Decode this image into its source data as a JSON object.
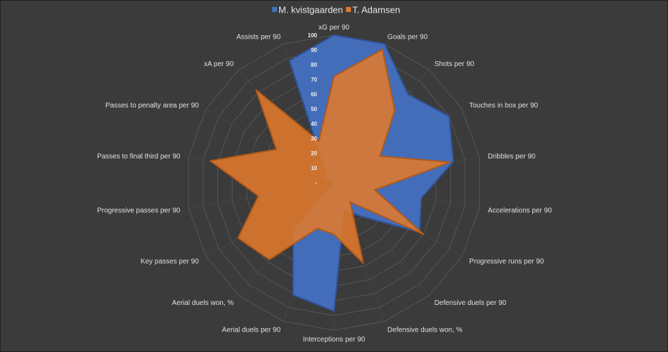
{
  "chart_data": {
    "type": "radar",
    "title": "",
    "axes": [
      "xG per 90",
      "Goals per 90",
      "Shots per 90",
      "Touches in box per 90",
      "Dribbles per 90",
      "Accelerations per 90",
      "Progressive runs per 90",
      "Defensive duels per 90",
      "Defensive duels won, %",
      "Interceptions per 90",
      "Aerial duels per 90",
      "Aerial duels won, %",
      "Key passes per 90",
      "Progressive passes per 90",
      "Passes to final third per 90",
      "Passes to penalty area per 90",
      "xA per 90",
      "Assists per 90"
    ],
    "ticks": [
      "-",
      "10",
      "20",
      "30",
      "40",
      "50",
      "60",
      "70",
      "80",
      "90",
      "100"
    ],
    "range": [
      0,
      100
    ],
    "grid": true,
    "legend_position": "top",
    "series": [
      {
        "name": "M. kvistgaarden",
        "color": "#4472c4",
        "values": [
          100,
          100,
          78,
          90,
          82,
          60,
          67,
          30,
          20,
          87,
          81,
          43,
          2,
          1,
          1,
          8,
          8,
          88
        ]
      },
      {
        "name": "T. Adamsen",
        "color": "#e07a2c",
        "values": [
          72,
          96,
          64,
          36,
          80,
          28,
          70,
          17,
          58,
          35,
          33,
          68,
          75,
          52,
          85,
          45,
          82,
          30
        ]
      }
    ]
  }
}
